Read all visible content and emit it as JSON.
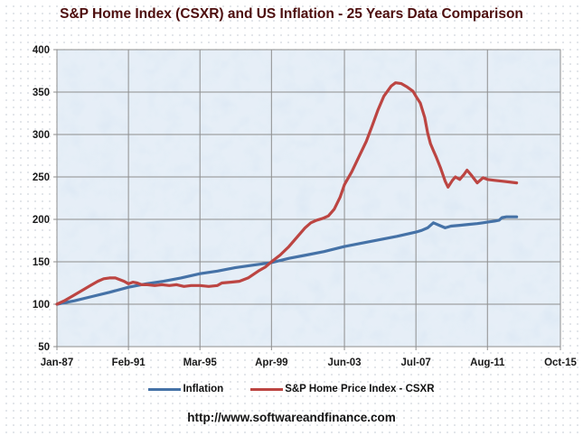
{
  "header": {
    "title": "S&P Home Index (CSXR) and US Inflation - 25 Years Data Comparison"
  },
  "footer": {
    "url": "http://www.softwareandfinance.com"
  },
  "colors": {
    "title_text": "#4d0e0e",
    "plot_background": "#d9e6f3",
    "gridline": "#8e8e8e",
    "inflation_line": "#4572a7",
    "csxr_line": "#bc4542"
  },
  "chart_data": {
    "type": "line",
    "title": "S&P Home Index (CSXR) and US Inflation - 25 Years Data Comparison",
    "xlabel": "",
    "ylabel": "",
    "x_unit": "months since Jan-1987",
    "xlim": [
      0,
      345
    ],
    "ylim": [
      50,
      400
    ],
    "grid": true,
    "legend_position": "bottom",
    "y_ticks": [
      50,
      100,
      150,
      200,
      250,
      300,
      350,
      400
    ],
    "x_ticks": [
      {
        "m": 0,
        "label": "Jan-87"
      },
      {
        "m": 49,
        "label": "Feb-91"
      },
      {
        "m": 98,
        "label": "Mar-95"
      },
      {
        "m": 147,
        "label": "Apr-99"
      },
      {
        "m": 197,
        "label": "Jun-03"
      },
      {
        "m": 246,
        "label": "Jul-07"
      },
      {
        "m": 295,
        "label": "Aug-11"
      },
      {
        "m": 345,
        "label": "Oct-15"
      }
    ],
    "series": [
      {
        "name": "Inflation",
        "color": "#4572a7",
        "points": [
          [
            0,
            100
          ],
          [
            12,
            104
          ],
          [
            24,
            109
          ],
          [
            36,
            114
          ],
          [
            49,
            120
          ],
          [
            61,
            124
          ],
          [
            73,
            127
          ],
          [
            85,
            131
          ],
          [
            98,
            136
          ],
          [
            110,
            139
          ],
          [
            122,
            143
          ],
          [
            134,
            146
          ],
          [
            147,
            149
          ],
          [
            159,
            154
          ],
          [
            171,
            158
          ],
          [
            183,
            162
          ],
          [
            197,
            168
          ],
          [
            209,
            172
          ],
          [
            221,
            176
          ],
          [
            233,
            180
          ],
          [
            246,
            185
          ],
          [
            250,
            187
          ],
          [
            254,
            190
          ],
          [
            258,
            196
          ],
          [
            262,
            193
          ],
          [
            266,
            190
          ],
          [
            270,
            192
          ],
          [
            276,
            193
          ],
          [
            282,
            194
          ],
          [
            288,
            195
          ],
          [
            292,
            196
          ],
          [
            296,
            197
          ],
          [
            300,
            198
          ],
          [
            303,
            199
          ],
          [
            305,
            202
          ],
          [
            308,
            203
          ],
          [
            315,
            203
          ]
        ]
      },
      {
        "name": "S&P Home Price Index - CSXR",
        "color": "#bc4542",
        "points": [
          [
            0,
            100
          ],
          [
            5,
            104
          ],
          [
            11,
            110
          ],
          [
            17,
            116
          ],
          [
            23,
            122
          ],
          [
            28,
            127
          ],
          [
            32,
            130
          ],
          [
            36,
            131
          ],
          [
            40,
            131
          ],
          [
            43,
            129
          ],
          [
            46,
            127
          ],
          [
            49,
            124
          ],
          [
            52,
            126
          ],
          [
            55,
            125
          ],
          [
            58,
            123
          ],
          [
            62,
            123
          ],
          [
            67,
            122
          ],
          [
            72,
            123
          ],
          [
            77,
            122
          ],
          [
            82,
            123
          ],
          [
            87,
            121
          ],
          [
            92,
            122
          ],
          [
            98,
            122
          ],
          [
            104,
            121
          ],
          [
            110,
            122
          ],
          [
            113,
            125
          ],
          [
            119,
            126
          ],
          [
            125,
            127
          ],
          [
            131,
            131
          ],
          [
            138,
            139
          ],
          [
            143,
            144
          ],
          [
            147,
            150
          ],
          [
            153,
            158
          ],
          [
            159,
            168
          ],
          [
            165,
            180
          ],
          [
            170,
            190
          ],
          [
            174,
            196
          ],
          [
            178,
            199
          ],
          [
            182,
            201
          ],
          [
            186,
            204
          ],
          [
            190,
            212
          ],
          [
            194,
            226
          ],
          [
            197,
            241
          ],
          [
            202,
            256
          ],
          [
            207,
            274
          ],
          [
            212,
            292
          ],
          [
            216,
            310
          ],
          [
            220,
            329
          ],
          [
            224,
            345
          ],
          [
            229,
            357
          ],
          [
            232,
            361
          ],
          [
            236,
            360
          ],
          [
            240,
            356
          ],
          [
            244,
            351
          ],
          [
            246,
            345
          ],
          [
            249,
            337
          ],
          [
            252,
            320
          ],
          [
            254,
            302
          ],
          [
            256,
            289
          ],
          [
            258,
            281
          ],
          [
            260,
            273
          ],
          [
            263,
            260
          ],
          [
            266,
            245
          ],
          [
            268,
            238
          ],
          [
            271,
            246
          ],
          [
            273,
            250
          ],
          [
            276,
            247
          ],
          [
            279,
            253
          ],
          [
            281,
            258
          ],
          [
            284,
            252
          ],
          [
            288,
            243
          ],
          [
            292,
            249
          ],
          [
            295,
            247
          ],
          [
            300,
            246
          ],
          [
            305,
            245
          ],
          [
            310,
            244
          ],
          [
            315,
            243
          ]
        ]
      }
    ]
  }
}
